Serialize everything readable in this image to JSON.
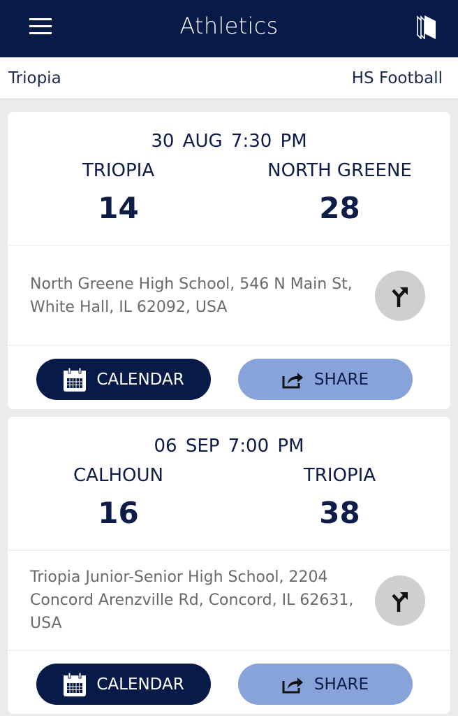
{
  "header": {
    "title": "Athletics",
    "menu_icon": "hamburger-menu-icon",
    "right_icon": "books-icon"
  },
  "subheader": {
    "school": "Triopia",
    "sport": "HS Football"
  },
  "colors": {
    "navy": "#071a48",
    "share_button": "#87a3da",
    "direction_button": "#cfcfcf"
  },
  "games": [
    {
      "date": "30 AUG",
      "time": "7:30 PM",
      "home": {
        "name": "TRIOPIA",
        "score": "14"
      },
      "away": {
        "name": "NORTH GREENE",
        "score": "28"
      },
      "address": "North Greene High School, 546 N Main St, White Hall, IL 62092, USA",
      "calendar_label": "CALENDAR",
      "share_label": "SHARE"
    },
    {
      "date": "06 SEP",
      "time": "7:00 PM",
      "home": {
        "name": "CALHOUN",
        "score": "16"
      },
      "away": {
        "name": "TRIOPIA",
        "score": "38"
      },
      "address": "Triopia Junior-Senior High School, 2204 Concord Arenzville Rd, Concord, IL 62631, USA",
      "calendar_label": "CALENDAR",
      "share_label": "SHARE"
    }
  ]
}
